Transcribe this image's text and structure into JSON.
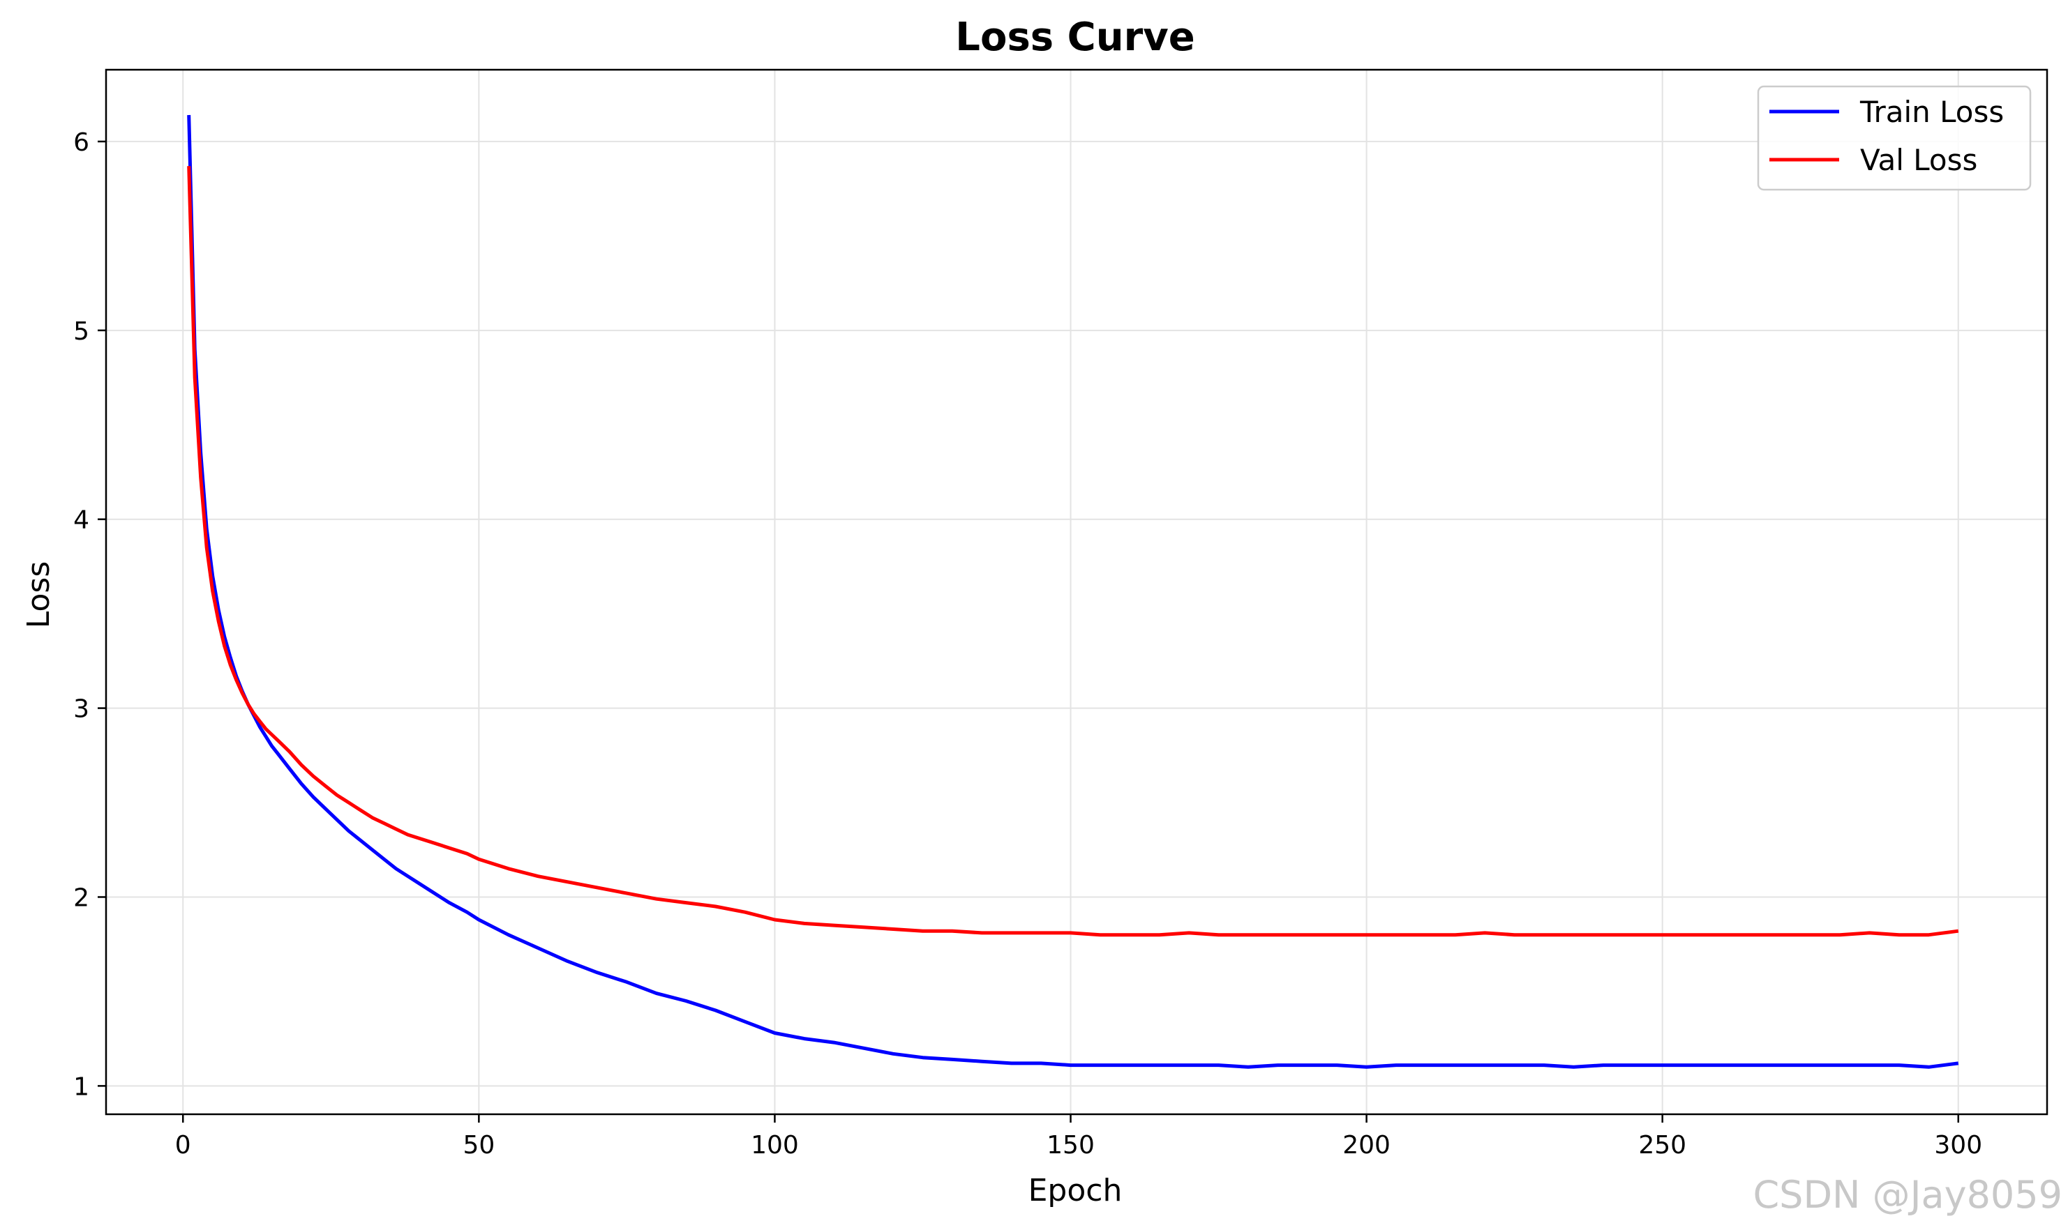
{
  "watermark": "CSDN @Jay8059",
  "chart_data": {
    "type": "line",
    "title": "Loss Curve",
    "xlabel": "Epoch",
    "ylabel": "Loss",
    "xlim": [
      -13,
      315
    ],
    "ylim": [
      0.85,
      6.38
    ],
    "xticks": [
      0,
      50,
      100,
      150,
      200,
      250,
      300
    ],
    "yticks": [
      1,
      2,
      3,
      4,
      5,
      6
    ],
    "grid": true,
    "legend_position": "top-right",
    "series": [
      {
        "name": "Train Loss",
        "color": "#0000ff",
        "x": [
          1,
          2,
          3,
          4,
          5,
          6,
          7,
          8,
          9,
          10,
          11,
          12,
          13,
          14,
          15,
          16,
          18,
          20,
          22,
          24,
          26,
          28,
          30,
          32,
          34,
          36,
          38,
          40,
          42,
          45,
          48,
          50,
          55,
          60,
          65,
          70,
          75,
          80,
          85,
          90,
          95,
          100,
          105,
          110,
          115,
          120,
          125,
          130,
          135,
          140,
          145,
          150,
          155,
          160,
          165,
          170,
          175,
          180,
          185,
          190,
          195,
          200,
          205,
          210,
          215,
          220,
          225,
          230,
          235,
          240,
          245,
          250,
          255,
          260,
          265,
          270,
          275,
          280,
          285,
          290,
          295,
          300
        ],
        "y": [
          6.14,
          4.9,
          4.35,
          3.95,
          3.7,
          3.52,
          3.38,
          3.27,
          3.17,
          3.09,
          3.02,
          2.96,
          2.9,
          2.85,
          2.8,
          2.76,
          2.68,
          2.6,
          2.53,
          2.47,
          2.41,
          2.35,
          2.3,
          2.25,
          2.2,
          2.15,
          2.11,
          2.07,
          2.03,
          1.97,
          1.92,
          1.88,
          1.8,
          1.73,
          1.66,
          1.6,
          1.55,
          1.49,
          1.45,
          1.4,
          1.34,
          1.28,
          1.25,
          1.23,
          1.2,
          1.17,
          1.15,
          1.14,
          1.13,
          1.12,
          1.12,
          1.11,
          1.11,
          1.11,
          1.11,
          1.11,
          1.11,
          1.1,
          1.11,
          1.11,
          1.11,
          1.1,
          1.11,
          1.11,
          1.11,
          1.11,
          1.11,
          1.11,
          1.1,
          1.11,
          1.11,
          1.11,
          1.11,
          1.11,
          1.11,
          1.11,
          1.11,
          1.11,
          1.11,
          1.11,
          1.1,
          1.12
        ]
      },
      {
        "name": "Val Loss",
        "color": "#ff0000",
        "x": [
          1,
          2,
          3,
          4,
          5,
          6,
          7,
          8,
          9,
          10,
          11,
          12,
          13,
          14,
          15,
          16,
          18,
          20,
          22,
          24,
          26,
          28,
          30,
          32,
          34,
          36,
          38,
          40,
          42,
          45,
          48,
          50,
          55,
          60,
          65,
          70,
          75,
          80,
          85,
          90,
          95,
          100,
          105,
          110,
          115,
          120,
          125,
          130,
          135,
          140,
          145,
          150,
          155,
          160,
          165,
          170,
          175,
          180,
          185,
          190,
          195,
          200,
          205,
          210,
          215,
          220,
          225,
          230,
          235,
          240,
          245,
          250,
          255,
          260,
          265,
          270,
          275,
          280,
          285,
          290,
          295,
          300
        ],
        "y": [
          5.87,
          4.75,
          4.22,
          3.85,
          3.62,
          3.46,
          3.33,
          3.23,
          3.15,
          3.08,
          3.02,
          2.97,
          2.93,
          2.89,
          2.86,
          2.83,
          2.77,
          2.7,
          2.64,
          2.59,
          2.54,
          2.5,
          2.46,
          2.42,
          2.39,
          2.36,
          2.33,
          2.31,
          2.29,
          2.26,
          2.23,
          2.2,
          2.15,
          2.11,
          2.08,
          2.05,
          2.02,
          1.99,
          1.97,
          1.95,
          1.92,
          1.88,
          1.86,
          1.85,
          1.84,
          1.83,
          1.82,
          1.82,
          1.81,
          1.81,
          1.81,
          1.81,
          1.8,
          1.8,
          1.8,
          1.81,
          1.8,
          1.8,
          1.8,
          1.8,
          1.8,
          1.8,
          1.8,
          1.8,
          1.8,
          1.81,
          1.8,
          1.8,
          1.8,
          1.8,
          1.8,
          1.8,
          1.8,
          1.8,
          1.8,
          1.8,
          1.8,
          1.8,
          1.81,
          1.8,
          1.8,
          1.82
        ]
      }
    ]
  }
}
